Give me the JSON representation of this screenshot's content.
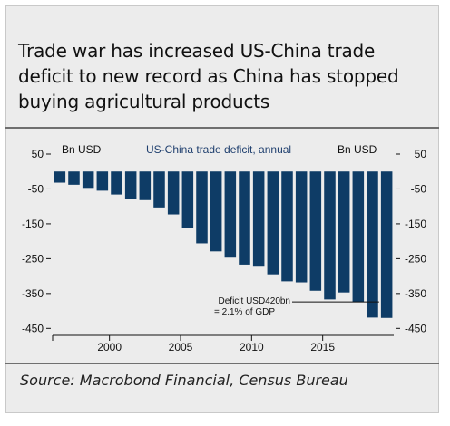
{
  "title": "Trade war has increased US-China trade deficit to new record as China has stopped buying agricultural products",
  "source": "Source: Macrobond Financial, Census Bureau",
  "colors": {
    "bar": "#0e3c66",
    "panel": "#ececec",
    "text": "#111111",
    "chart_title": "#1f3f6e"
  },
  "chart_data": {
    "type": "bar",
    "title": "US-China trade deficit, annual",
    "ylabel_left": "Bn USD",
    "ylabel_right": "Bn USD",
    "ylim": [
      -470,
      50
    ],
    "yticks": [
      50,
      -50,
      -150,
      -250,
      -350,
      -450
    ],
    "ytick_labels": [
      "50",
      "-50",
      "-150",
      "-250",
      "-350",
      "-450"
    ],
    "xlim": [
      1995.5,
      2019.5
    ],
    "xticks": [
      2000,
      2005,
      2010,
      2015
    ],
    "xtick_labels": [
      "2000",
      "2005",
      "2010",
      "2015"
    ],
    "x": [
      1996,
      1997,
      1998,
      1999,
      2000,
      2001,
      2002,
      2003,
      2004,
      2005,
      2006,
      2007,
      2008,
      2009,
      2010,
      2011,
      2012,
      2013,
      2014,
      2015,
      2016,
      2017,
      2018,
      2019
    ],
    "values": [
      -32,
      -38,
      -47,
      -55,
      -66,
      -80,
      -82,
      -103,
      -123,
      -162,
      -206,
      -229,
      -247,
      -267,
      -273,
      -295,
      -315,
      -318,
      -342,
      -367,
      -347,
      -375,
      -419,
      -420
    ],
    "annotation": {
      "line1": "Deficit USD420bn",
      "line2": "= 2.1% of GDP",
      "year": 2019,
      "value": -420
    }
  }
}
